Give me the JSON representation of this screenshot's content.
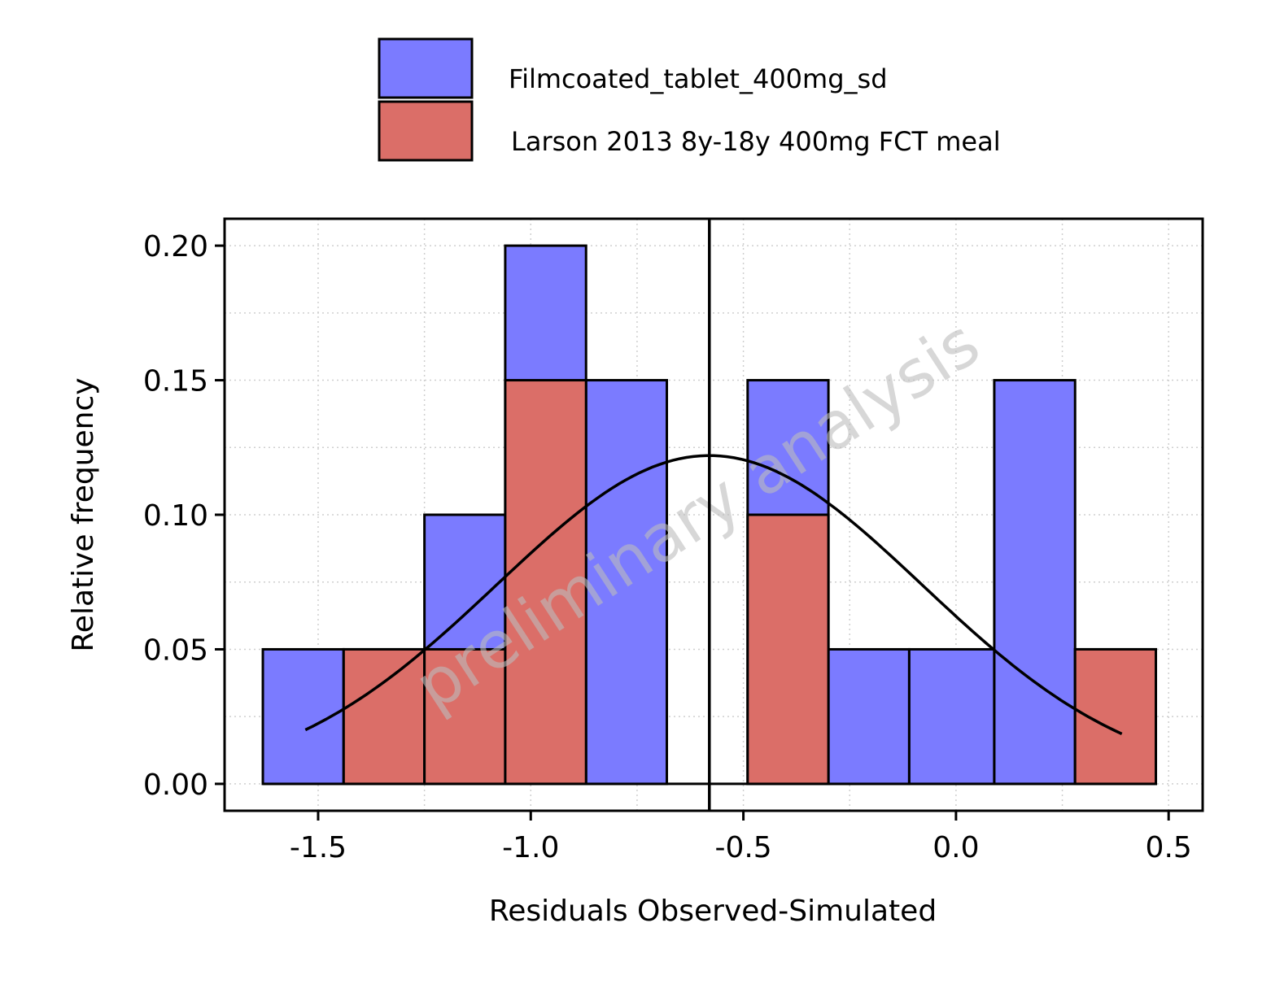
{
  "chart_data": {
    "type": "bar",
    "subtype": "histogram",
    "xlabel": "Residuals Observed-Simulated",
    "ylabel": "Relative frequency",
    "xlim": [
      -1.72,
      0.58
    ],
    "ylim": [
      -0.01,
      0.21
    ],
    "xticks": [
      -1.5,
      -1.0,
      -0.5,
      0.0,
      0.5
    ],
    "xtick_labels": [
      "-1.5",
      "-1.0",
      "-0.5",
      "0.0",
      "0.5"
    ],
    "yticks": [
      0.0,
      0.05,
      0.1,
      0.15,
      0.2
    ],
    "ytick_labels": [
      "0.00",
      "0.05",
      "0.10",
      "0.15",
      "0.20"
    ],
    "grid": true,
    "legend_position": "top",
    "watermark": "preliminary analysis",
    "bin_edges": [
      -1.63,
      -1.44,
      -1.25,
      -1.06,
      -0.87,
      -0.68,
      -0.49,
      -0.3,
      -0.11,
      0.09,
      0.28,
      0.47
    ],
    "series": [
      {
        "name": "Filmcoated_tablet_400mg_sd",
        "color": "#7b7bff",
        "values": [
          0.05,
          0.05,
          0.1,
          0.2,
          0.15,
          0.0,
          0.15,
          0.05,
          0.05,
          0.15,
          0.05
        ]
      },
      {
        "name": "Larson 2013 8y-18y 400mg FCT meal",
        "color": "#db6e68",
        "values": [
          0.0,
          0.05,
          0.05,
          0.15,
          0.0,
          0.0,
          0.1,
          0.0,
          0.0,
          0.0,
          0.05
        ]
      }
    ],
    "reference_line_x": -0.58,
    "normal_curve": {
      "mean": -0.58,
      "sd": 0.5,
      "peak": 0.122,
      "x_range": [
        -1.53,
        0.39
      ]
    }
  }
}
